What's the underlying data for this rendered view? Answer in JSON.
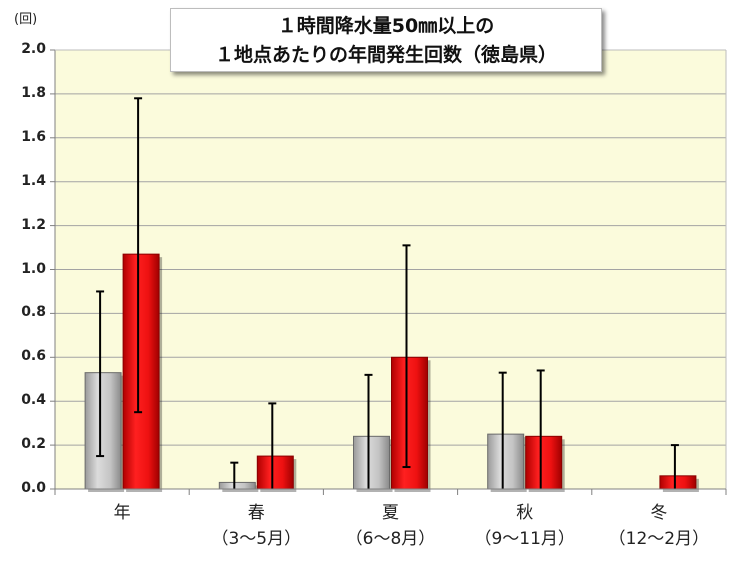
{
  "chart_data": {
    "type": "bar",
    "title_line1": "１時間降水量50㎜以上の",
    "title_line2": "１地点あたりの年間発生回数（徳島県）",
    "unit_label": "(回)",
    "categories": [
      "年",
      "春",
      "夏",
      "秋",
      "冬"
    ],
    "category_sublabels": [
      "",
      "（3〜5月）",
      "（6〜8月）",
      "（9〜11月）",
      "（12〜2月）"
    ],
    "ylim": [
      0,
      2.0
    ],
    "yticks": [
      "0.0",
      "0.2",
      "0.4",
      "0.6",
      "0.8",
      "1.0",
      "1.2",
      "1.4",
      "1.6",
      "1.8",
      "2.0"
    ],
    "grid": true,
    "series": [
      {
        "color": "#c0c0c0",
        "values": [
          0.53,
          0.03,
          0.24,
          0.25,
          0.0
        ],
        "err_low": [
          0.15,
          0.0,
          0.0,
          0.0,
          0.0
        ],
        "err_high": [
          0.9,
          0.12,
          0.52,
          0.53,
          0.0
        ]
      },
      {
        "color": "#ee1111",
        "values": [
          1.07,
          0.15,
          0.6,
          0.24,
          0.06
        ],
        "err_low": [
          0.35,
          0.0,
          0.1,
          0.0,
          0.0
        ],
        "err_high": [
          1.78,
          0.39,
          1.11,
          0.54,
          0.2
        ]
      }
    ],
    "plot_background": "#fbfbdc",
    "grid_color": "#a3a3a3"
  }
}
